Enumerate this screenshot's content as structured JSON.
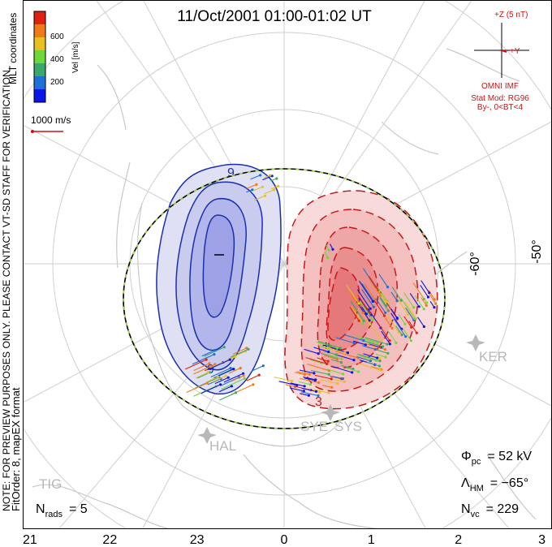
{
  "title": "11/Oct/2001 01:00-01:02 UT",
  "colorbar": {
    "label": "Vel [m/s]",
    "ticks": [
      "600",
      "400",
      "200"
    ],
    "colors": [
      "#0a16e8",
      "#1f6fd8",
      "#3aa86a",
      "#6ed83a",
      "#e8c020",
      "#f07a18",
      "#e02010"
    ]
  },
  "coord_system": "MLT coordinates",
  "scale_vector": "1000 m/s",
  "imf": {
    "z_label": "+Z (5 nT)",
    "y_label": "+Y",
    "source": "OMNI IMF",
    "stat_model": "Stat Mod: RG96",
    "condition": "By-, 0<BT<4"
  },
  "side_note_1": "NOTE: FOR PREVIEW PURPOSES ONLY. PLEASE CONTACT VT-SD STAFF FOR VERIFICATION.",
  "side_note_2": "FitOrder: 8, mapEX format",
  "lat_labels": [
    "-60°",
    "-50°"
  ],
  "stations": [
    "KER",
    "SYE",
    "SYS",
    "HAL",
    "TIG"
  ],
  "mlt_labels": [
    "21",
    "22",
    "23",
    "0",
    "1",
    "2",
    "3"
  ],
  "phi_pc": {
    "symbol": "Φ",
    "sub": "pc",
    "value": "= 52 kV"
  },
  "lambda_hm": {
    "symbol": "Λ",
    "sub": "HM",
    "value": "= −65°"
  },
  "n_vc": {
    "symbol": "N",
    "sub": "vc",
    "value": "= 229"
  },
  "n_rads": {
    "symbol": "N",
    "sub": "rads",
    "value": "= 5"
  }
}
